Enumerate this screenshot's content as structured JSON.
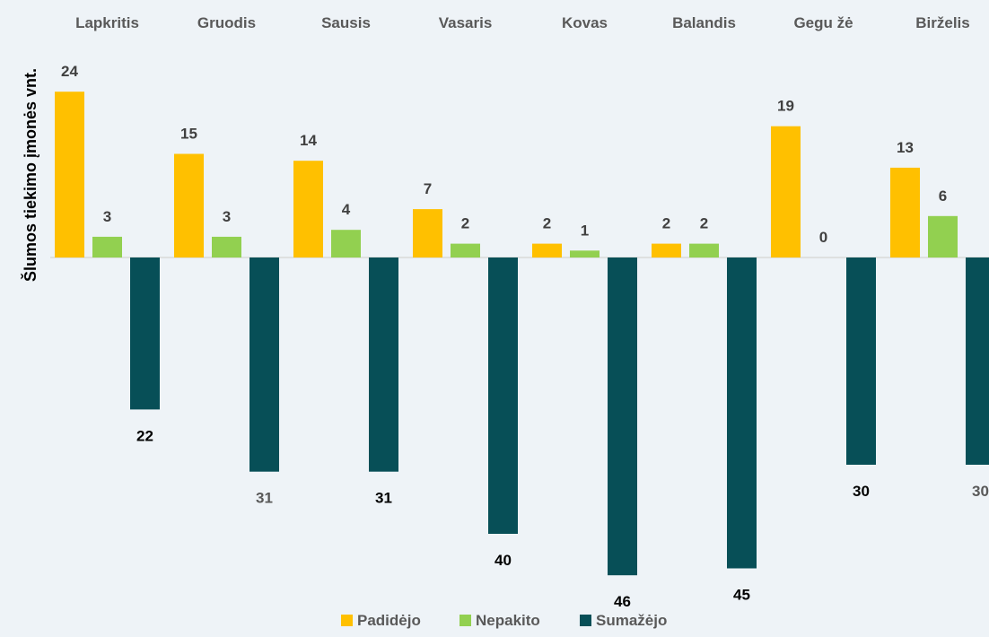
{
  "chart_data": {
    "type": "bar",
    "ylabel": "Šlumos tiekimo įmonės vnt.",
    "categories": [
      "Lapkritis",
      "Gruodis",
      "Sausis",
      "Vasaris",
      "Kovas",
      "Balandis",
      "Gegu žė",
      "Birželis"
    ],
    "series": [
      {
        "name": "Padidėjo",
        "values": [
          24,
          15,
          14,
          7,
          2,
          2,
          19,
          13
        ],
        "color": "#FFC000"
      },
      {
        "name": "Nepakito",
        "values": [
          3,
          3,
          4,
          2,
          1,
          2,
          0,
          6
        ],
        "color": "#92D050"
      },
      {
        "name": "Sumažėjo",
        "values": [
          -22,
          -31,
          -31,
          -40,
          -46,
          -45,
          -30,
          -30
        ],
        "color": "#074F57"
      }
    ],
    "data_labels": [
      [
        "24",
        "15",
        "14",
        "7",
        "2",
        "2",
        "19",
        "13"
      ],
      [
        "3",
        "3",
        "4",
        "2",
        "1",
        "2",
        "0",
        "6"
      ],
      [
        "22",
        "31",
        "31",
        "40",
        "46",
        "45",
        "30",
        "30"
      ]
    ],
    "label_colors": [
      [
        "#404040",
        "#404040",
        "#404040",
        "#404040",
        "#404040",
        "#404040",
        "#404040",
        "#404040"
      ],
      [
        "#404040",
        "#404040",
        "#404040",
        "#404040",
        "#404040",
        "#404040",
        "#404040",
        "#404040"
      ],
      [
        "#000000",
        "#595959",
        "#000000",
        "#000000",
        "#000000",
        "#000000",
        "#000000",
        "#595959"
      ]
    ],
    "ylim": [
      -46,
      24
    ],
    "grid": false,
    "legend_position": "bottom-center",
    "category_axis_position": "top",
    "colors": {
      "background": "#EEF3F7",
      "axis_line": "#D9D9D9",
      "category_text": "#595959"
    }
  }
}
